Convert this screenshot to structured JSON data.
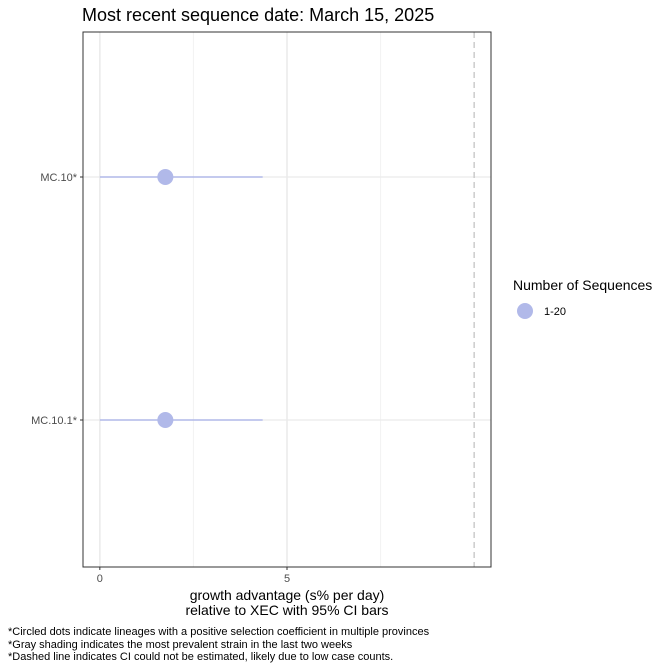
{
  "chart_data": {
    "type": "scatter",
    "title": "Most recent sequence date: March 15, 2025",
    "xlabel_lines": [
      "growth advantage (s% per day)",
      "relative to  XEC  with 95% CI bars"
    ],
    "ylabel": "",
    "xlim": [
      -0.45,
      10.45
    ],
    "x_ticks": [
      0,
      5
    ],
    "x_tick_labels": [
      "0",
      "5"
    ],
    "x_minor_gridlines": [
      2.5,
      7.5
    ],
    "grid": true,
    "categories": [
      "MC.10*",
      "MC.10.1*"
    ],
    "points": [
      {
        "lineage": "MC.10*",
        "x": 1.75,
        "ci_low": 0.0,
        "ci_high": 4.35,
        "size_group": "1-20"
      },
      {
        "lineage": "MC.10.1*",
        "x": 1.75,
        "ci_low": 0.0,
        "ci_high": 4.35,
        "size_group": "1-20"
      }
    ],
    "dashed_reference_x": 10.0,
    "point_color": "#b1b9e9",
    "legend": {
      "title": "Number of Sequences",
      "entries": [
        {
          "label": "1-20",
          "color": "#b1b9e9"
        }
      ],
      "placement": "right"
    }
  },
  "footnotes": [
    "*Circled dots indicate lineages with a positive selection coefficient in multiple provinces",
    "*Gray shading indicates the most prevalent strain in the last two weeks",
    "*Dashed line indicates CI could not be estimated, likely due to low case counts."
  ]
}
